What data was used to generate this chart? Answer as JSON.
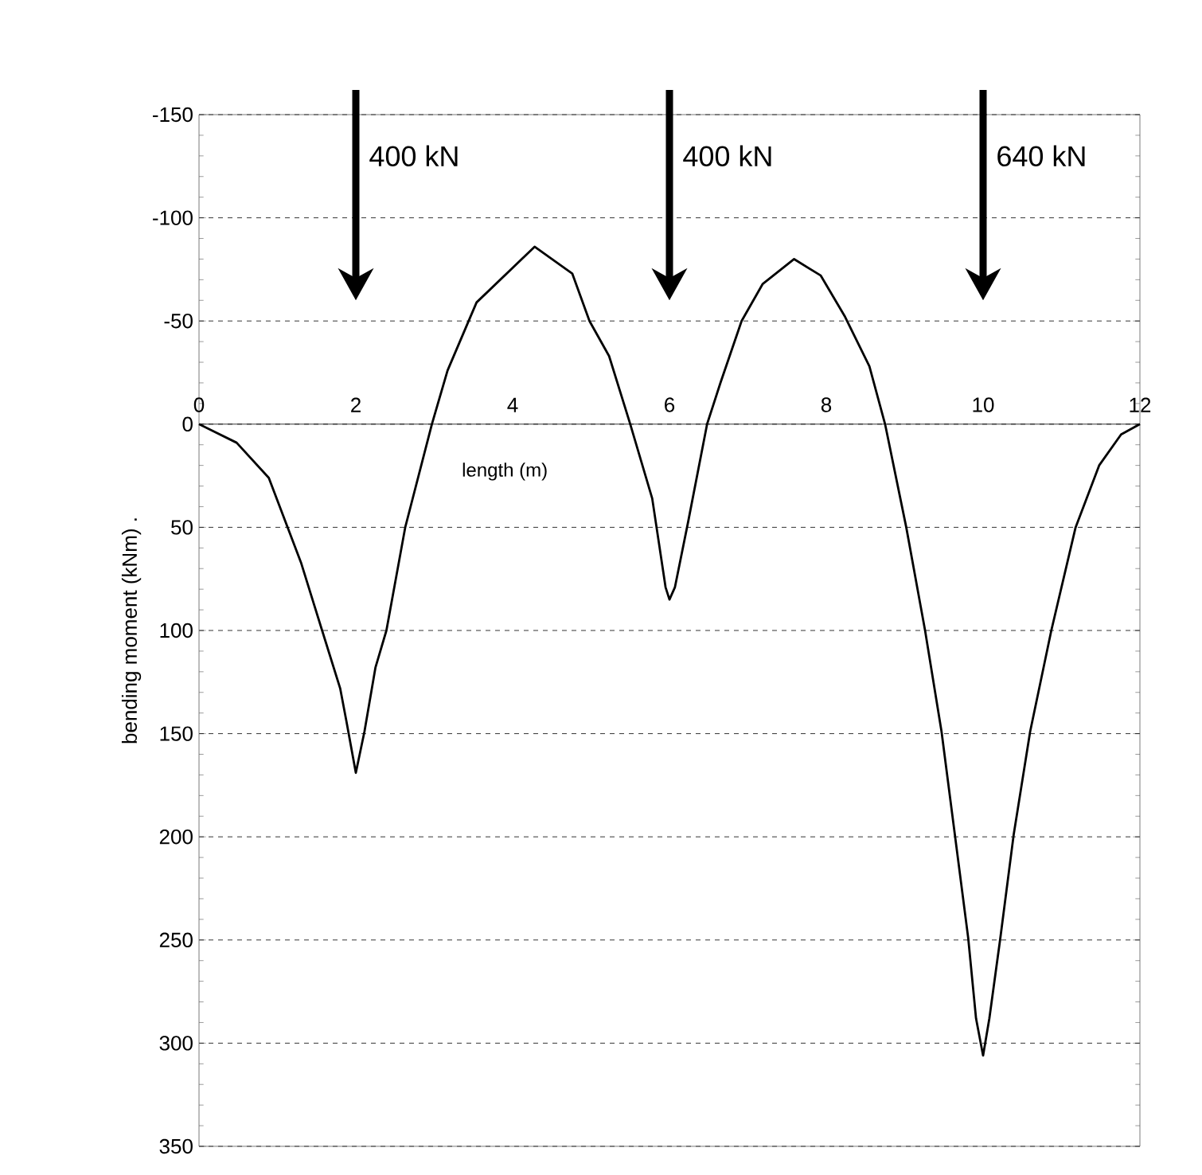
{
  "chart_data": {
    "type": "line",
    "xlabel": "length (m)",
    "ylabel": "bending moment (kNm) .",
    "x": [
      0,
      0.48,
      0.89,
      1.3,
      1.57,
      1.8,
      1.88,
      2,
      2.11,
      2.25,
      2.39,
      2.63,
      2.97,
      3.17,
      3.45,
      3.54,
      4.28,
      4.76,
      4.98,
      5.23,
      5.5,
      5.78,
      5.95,
      6,
      6.07,
      6.24,
      6.48,
      6.65,
      6.92,
      7.19,
      7.59,
      7.93,
      8.24,
      8.55,
      8.75,
      9.02,
      9.26,
      9.47,
      9.64,
      9.81,
      9.91,
      10,
      10.08,
      10.22,
      10.39,
      10.6,
      10.87,
      11.18,
      11.48,
      11.76,
      12
    ],
    "series": [
      {
        "color": "#000000",
        "values": [
          0,
          9,
          26,
          67,
          100,
          128,
          144,
          169,
          149,
          118,
          100,
          50,
          0,
          -26,
          -51,
          -59,
          -86,
          -73,
          -50,
          -33,
          0,
          36,
          79,
          85,
          79,
          47,
          0,
          -20,
          -50,
          -68,
          -80,
          -72,
          -52,
          -28,
          0,
          50,
          100,
          149,
          199,
          249,
          288,
          306,
          288,
          249,
          199,
          149,
          100,
          50,
          20,
          5,
          0
        ]
      }
    ],
    "xlim": [
      0,
      12
    ],
    "ylim": [
      350,
      -150
    ],
    "xticks": [
      0,
      2,
      4,
      6,
      8,
      10,
      12
    ],
    "yticks": [
      -150,
      -100,
      -50,
      0,
      50,
      100,
      150,
      200,
      250,
      300,
      350
    ],
    "grid": "y",
    "line_style": "solid",
    "marker": "none",
    "annotations": [
      "400 kN",
      "400 kN",
      "640 kN"
    ]
  }
}
